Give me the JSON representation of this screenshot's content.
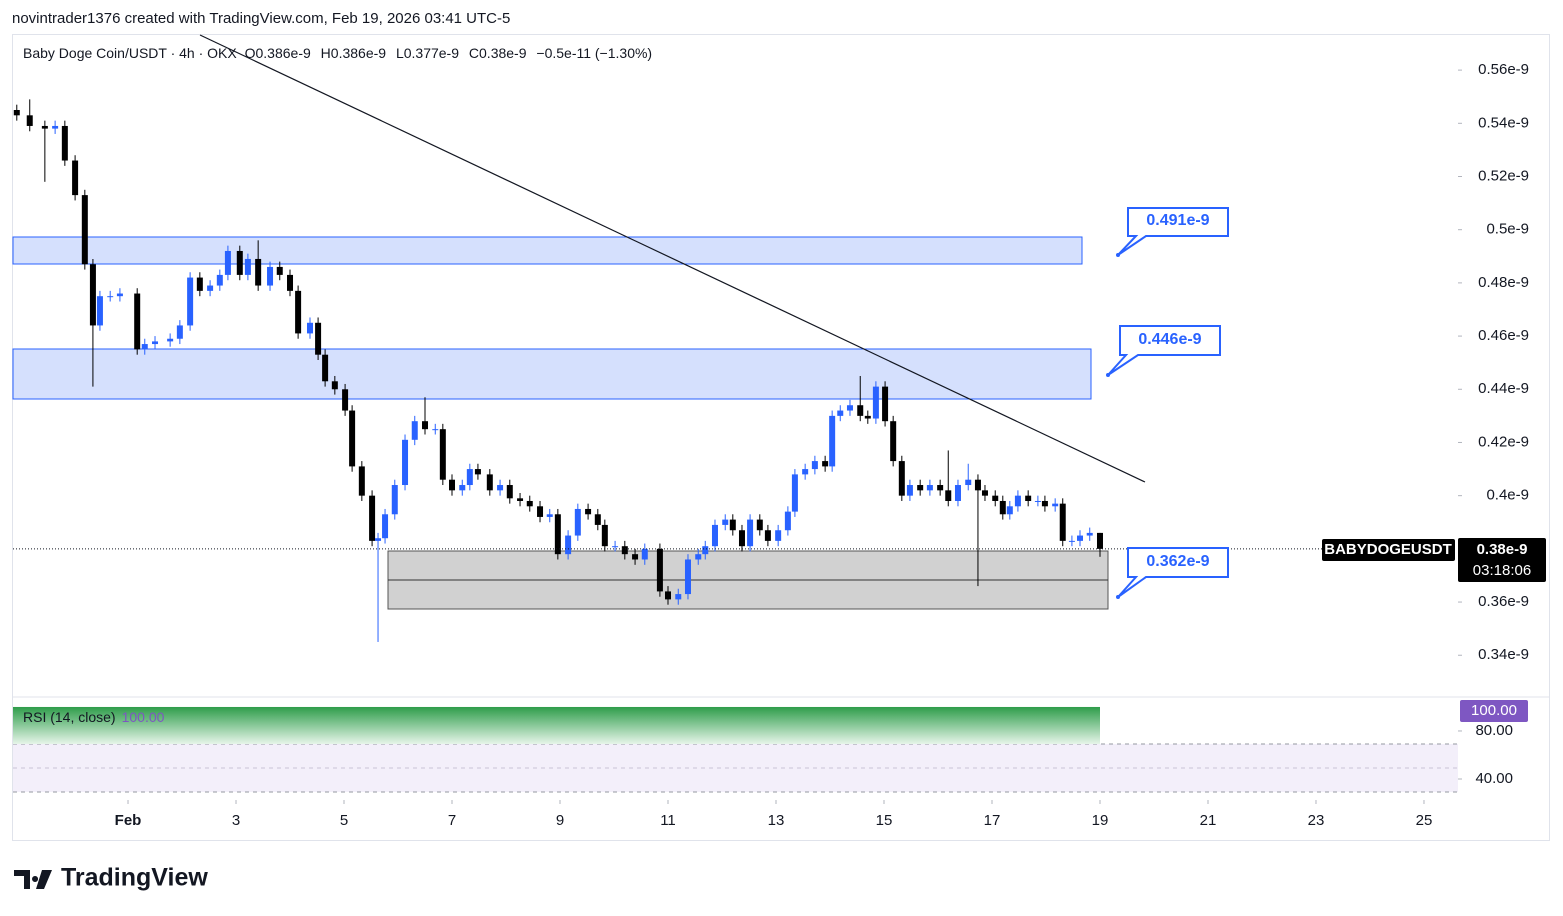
{
  "header": "novintrader1376 created with TradingView.com, Feb 19, 2026 03:41 UTC-5",
  "brand": "TradingView",
  "chart_data": {
    "type": "candlestick",
    "title": "Baby Doge Coin/USDT · 4h · OKX",
    "ohlc_legend": [
      "O0.386e-9",
      "H0.386e-9",
      "L0.377e-9",
      "C0.38e-9",
      "−0.5e-11 (−1.30%)"
    ],
    "symbol": "BABYDOGEUSDT",
    "last_label": "0.38e-9",
    "countdown": "03:18:06",
    "up_color": "#2962ff",
    "down_color": "#000000",
    "zone_labels": [
      "0.491e-9",
      "0.446e-9",
      "0.362e-9"
    ],
    "x": [
      -1.06,
      -0.82,
      -0.54,
      -0.35,
      -0.17,
      0.02,
      0.2,
      0.35,
      0.48,
      0.67,
      0.85,
      1.17,
      1.31,
      1.5,
      1.78,
      1.96,
      2.15,
      2.33,
      2.52,
      2.7,
      2.85,
      3.07,
      3.22,
      3.41,
      3.63,
      3.81,
      4.0,
      4.15,
      4.37,
      4.52,
      4.65,
      4.83,
      5.02,
      5.15,
      5.33,
      5.52,
      5.63,
      5.76,
      5.94,
      6.13,
      6.31,
      6.5,
      6.69,
      6.83,
      7.0,
      7.19,
      7.33,
      7.48,
      7.7,
      7.89,
      8.07,
      8.26,
      8.44,
      8.63,
      8.81,
      8.96,
      9.15,
      9.33,
      9.52,
      9.7,
      9.83,
      10.02,
      10.2,
      10.39,
      10.57,
      10.85,
      11.0,
      11.19,
      11.37,
      11.56,
      11.69,
      11.87,
      12.06,
      12.2,
      12.37,
      12.52,
      12.7,
      12.85,
      13.04,
      13.22,
      13.35,
      13.54,
      13.72,
      13.91,
      14.04,
      14.19,
      14.37,
      14.56,
      14.7,
      14.85,
      15.02,
      15.17,
      15.33,
      15.48,
      15.67,
      15.85,
      16.04,
      16.19,
      16.37,
      16.56,
      16.74,
      16.87,
      17.06,
      17.2,
      17.33,
      17.48,
      17.67,
      17.85,
      17.98,
      18.17,
      18.31,
      18.48,
      18.63,
      18.81,
      19.0
    ],
    "open": [
      0.545,
      0.543,
      0.539,
      0.538,
      0.539,
      0.526,
      0.513,
      0.487,
      0.464,
      0.475,
      0.475,
      0.476,
      0.455,
      0.457,
      0.458,
      0.459,
      0.464,
      0.482,
      0.477,
      0.479,
      0.483,
      0.492,
      0.483,
      0.489,
      0.479,
      0.486,
      0.483,
      0.477,
      0.461,
      0.465,
      0.453,
      0.443,
      0.44,
      0.432,
      0.411,
      0.4,
      0.383,
      0.384,
      0.393,
      0.404,
      0.421,
      0.428,
      0.425,
      0.425,
      0.406,
      0.402,
      0.404,
      0.41,
      0.408,
      0.402,
      0.404,
      0.399,
      0.398,
      0.396,
      0.392,
      0.393,
      0.378,
      0.385,
      0.395,
      0.393,
      0.389,
      0.381,
      0.381,
      0.378,
      0.376,
      0.38,
      0.364,
      0.361,
      0.363,
      0.376,
      0.378,
      0.381,
      0.389,
      0.391,
      0.387,
      0.381,
      0.391,
      0.387,
      0.383,
      0.387,
      0.394,
      0.408,
      0.41,
      0.413,
      0.411,
      0.43,
      0.432,
      0.434,
      0.43,
      0.429,
      0.441,
      0.428,
      0.413,
      0.4,
      0.404,
      0.402,
      0.404,
      0.402,
      0.398,
      0.404,
      0.406,
      0.402,
      0.4,
      0.398,
      0.393,
      0.396,
      0.4,
      0.398,
      0.398,
      0.396,
      0.397,
      0.383,
      0.383,
      0.385,
      0.386
    ],
    "high": [
      0.547,
      0.549,
      0.541,
      0.541,
      0.541,
      0.528,
      0.515,
      0.489,
      0.477,
      0.477,
      0.478,
      0.478,
      0.459,
      0.46,
      0.461,
      0.466,
      0.484,
      0.484,
      0.481,
      0.485,
      0.494,
      0.494,
      0.491,
      0.496,
      0.488,
      0.488,
      0.485,
      0.479,
      0.467,
      0.467,
      0.455,
      0.445,
      0.442,
      0.434,
      0.413,
      0.402,
      0.386,
      0.395,
      0.406,
      0.423,
      0.43,
      0.437,
      0.427,
      0.427,
      0.408,
      0.406,
      0.412,
      0.412,
      0.41,
      0.406,
      0.406,
      0.401,
      0.4,
      0.398,
      0.395,
      0.395,
      0.387,
      0.397,
      0.397,
      0.395,
      0.391,
      0.383,
      0.383,
      0.38,
      0.382,
      0.382,
      0.366,
      0.365,
      0.378,
      0.38,
      0.383,
      0.391,
      0.393,
      0.393,
      0.389,
      0.393,
      0.393,
      0.389,
      0.389,
      0.396,
      0.41,
      0.412,
      0.415,
      0.415,
      0.432,
      0.434,
      0.436,
      0.445,
      0.432,
      0.443,
      0.443,
      0.43,
      0.415,
      0.406,
      0.406,
      0.406,
      0.406,
      0.417,
      0.406,
      0.412,
      0.408,
      0.404,
      0.402,
      0.4,
      0.398,
      0.402,
      0.402,
      0.4,
      0.4,
      0.399,
      0.399,
      0.385,
      0.387,
      0.388,
      0.386
    ],
    "low": [
      0.541,
      0.537,
      0.518,
      0.536,
      0.524,
      0.511,
      0.485,
      0.441,
      0.462,
      0.473,
      0.473,
      0.453,
      0.453,
      0.455,
      0.456,
      0.457,
      0.462,
      0.475,
      0.475,
      0.477,
      0.481,
      0.481,
      0.481,
      0.477,
      0.477,
      0.481,
      0.475,
      0.459,
      0.459,
      0.451,
      0.441,
      0.438,
      0.43,
      0.409,
      0.398,
      0.381,
      0.345,
      0.382,
      0.391,
      0.402,
      0.419,
      0.423,
      0.423,
      0.404,
      0.4,
      0.4,
      0.402,
      0.406,
      0.4,
      0.4,
      0.397,
      0.396,
      0.394,
      0.39,
      0.39,
      0.376,
      0.376,
      0.383,
      0.391,
      0.387,
      0.379,
      0.379,
      0.376,
      0.374,
      0.374,
      0.362,
      0.359,
      0.359,
      0.361,
      0.374,
      0.376,
      0.379,
      0.387,
      0.385,
      0.379,
      0.379,
      0.385,
      0.381,
      0.381,
      0.385,
      0.392,
      0.406,
      0.408,
      0.409,
      0.409,
      0.428,
      0.43,
      0.428,
      0.427,
      0.427,
      0.426,
      0.411,
      0.398,
      0.398,
      0.4,
      0.4,
      0.4,
      0.396,
      0.396,
      0.402,
      0.366,
      0.398,
      0.396,
      0.391,
      0.391,
      0.394,
      0.396,
      0.396,
      0.394,
      0.394,
      0.381,
      0.381,
      0.381,
      0.383,
      0.377
    ],
    "close": [
      0.543,
      0.539,
      0.538,
      0.539,
      0.526,
      0.513,
      0.487,
      0.464,
      0.475,
      0.475,
      0.476,
      0.455,
      0.457,
      0.458,
      0.459,
      0.464,
      0.482,
      0.477,
      0.479,
      0.483,
      0.492,
      0.483,
      0.489,
      0.479,
      0.486,
      0.483,
      0.477,
      0.461,
      0.465,
      0.453,
      0.443,
      0.44,
      0.432,
      0.411,
      0.4,
      0.383,
      0.384,
      0.393,
      0.404,
      0.421,
      0.428,
      0.425,
      0.425,
      0.406,
      0.402,
      0.404,
      0.41,
      0.408,
      0.402,
      0.404,
      0.399,
      0.398,
      0.396,
      0.392,
      0.393,
      0.378,
      0.385,
      0.395,
      0.393,
      0.389,
      0.381,
      0.381,
      0.378,
      0.376,
      0.38,
      0.364,
      0.361,
      0.363,
      0.376,
      0.378,
      0.381,
      0.389,
      0.391,
      0.387,
      0.381,
      0.391,
      0.387,
      0.383,
      0.387,
      0.394,
      0.408,
      0.41,
      0.413,
      0.411,
      0.43,
      0.432,
      0.434,
      0.43,
      0.429,
      0.441,
      0.428,
      0.413,
      0.4,
      0.404,
      0.402,
      0.404,
      0.402,
      0.398,
      0.404,
      0.406,
      0.402,
      0.4,
      0.398,
      0.393,
      0.396,
      0.4,
      0.398,
      0.398,
      0.396,
      0.397,
      0.383,
      0.383,
      0.385,
      0.386,
      0.38
    ],
    "ylim": [
      0.3243,
      0.5732
    ],
    "yticks": [
      {
        "value": 0.56,
        "label": "0.56e-9"
      },
      {
        "value": 0.54,
        "label": "0.54e-9"
      },
      {
        "value": 0.52,
        "label": "0.52e-9"
      },
      {
        "value": 0.5,
        "label": "0.5e-9"
      },
      {
        "value": 0.48,
        "label": "0.48e-9"
      },
      {
        "value": 0.46,
        "label": "0.46e-9"
      },
      {
        "value": 0.44,
        "label": "0.44e-9"
      },
      {
        "value": 0.42,
        "label": "0.42e-9"
      },
      {
        "value": 0.4,
        "label": "0.4e-9"
      },
      {
        "value": 0.38,
        "label": "0.38e-9"
      },
      {
        "value": 0.36,
        "label": "0.36e-9"
      },
      {
        "value": 0.34,
        "label": "0.34e-9"
      }
    ],
    "xlim": [
      -1.13,
      25.63
    ],
    "xticks": [
      {
        "value": 1,
        "label": "Feb"
      },
      3,
      5,
      7,
      9,
      11,
      13,
      15,
      17,
      19,
      21,
      23,
      25
    ],
    "rsi": {
      "name": "RSI (14, close)",
      "value": 100,
      "value_label": "100.00",
      "ylim": [
        22.5,
        108.3
      ],
      "yticks": [
        {
          "value": 80,
          "label": "80.00"
        },
        {
          "value": 40,
          "label": "40.00"
        }
      ]
    }
  }
}
